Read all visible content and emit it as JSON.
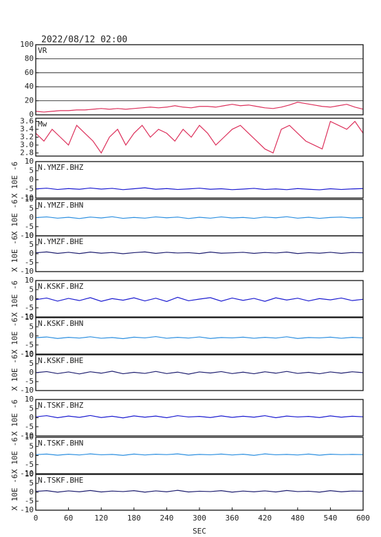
{
  "title": "2022/08/12 02:00",
  "chart_data": [
    {
      "type": "line",
      "title": "VR",
      "grid": true,
      "x": [
        0,
        15,
        30,
        45,
        60,
        75,
        90,
        105,
        120,
        135,
        150,
        165,
        180,
        195,
        210,
        225,
        240,
        255,
        270,
        285,
        300,
        315,
        330,
        345,
        360,
        375,
        390,
        405,
        420,
        435,
        450,
        465,
        480,
        495,
        510,
        525,
        540,
        555,
        570,
        585,
        600
      ],
      "series": [
        {
          "color": "#dc2f5a",
          "values": [
            5,
            4,
            5,
            6,
            6,
            7,
            7,
            8,
            9,
            8,
            9,
            8,
            9,
            10,
            11,
            10,
            11,
            13,
            11,
            10,
            12,
            12,
            11,
            13,
            15,
            13,
            14,
            12,
            10,
            9,
            11,
            14,
            18,
            16,
            14,
            12,
            11,
            13,
            15,
            11,
            8
          ]
        }
      ],
      "xlim": [
        0,
        600
      ],
      "ylim": [
        0,
        100
      ],
      "yticks": [
        0,
        20,
        40,
        60,
        80,
        100
      ]
    },
    {
      "type": "line",
      "title": "Mw",
      "x": [
        0,
        15,
        30,
        45,
        60,
        75,
        90,
        105,
        120,
        135,
        150,
        165,
        180,
        195,
        210,
        225,
        240,
        255,
        270,
        285,
        300,
        315,
        330,
        345,
        360,
        375,
        390,
        405,
        420,
        435,
        450,
        465,
        480,
        495,
        510,
        525,
        540,
        555,
        570,
        585,
        600
      ],
      "series": [
        {
          "color": "#dc2f5a",
          "values": [
            3.3,
            3.1,
            3.4,
            3.2,
            3.0,
            3.5,
            3.3,
            3.1,
            2.8,
            3.2,
            3.4,
            3.0,
            3.3,
            3.5,
            3.2,
            3.4,
            3.3,
            3.1,
            3.4,
            3.2,
            3.5,
            3.3,
            3.0,
            3.2,
            3.4,
            3.5,
            3.3,
            3.1,
            2.9,
            2.8,
            3.4,
            3.5,
            3.3,
            3.1,
            3.0,
            2.9,
            3.6,
            3.5,
            3.4,
            3.6,
            3.3
          ]
        }
      ],
      "xlim": [
        0,
        600
      ],
      "ylim": [
        2.72,
        3.68
      ],
      "yticks": [
        {
          "value": 2.8,
          "label": "2.8"
        },
        {
          "value": 3,
          "label": "3.0"
        },
        {
          "value": 3.2,
          "label": "3.2"
        },
        {
          "value": 3.4,
          "label": "3.4"
        },
        {
          "value": 3.6,
          "label": "3.6"
        }
      ]
    },
    {
      "type": "line",
      "title": "N.YMZF.BHZ",
      "ylabel": "X 10E -6",
      "x": [
        0,
        20,
        40,
        60,
        80,
        100,
        120,
        140,
        160,
        180,
        200,
        220,
        240,
        260,
        280,
        300,
        320,
        340,
        360,
        380,
        400,
        420,
        440,
        460,
        480,
        500,
        520,
        540,
        560,
        580,
        600
      ],
      "series": [
        {
          "color": "#1a1ad0",
          "values": [
            -5,
            -4.6,
            -5.3,
            -4.8,
            -5.2,
            -4.5,
            -5.1,
            -4.7,
            -5.4,
            -4.9,
            -4.4,
            -5.2,
            -4.8,
            -5.3,
            -5,
            -4.6,
            -5.2,
            -4.9,
            -5.4,
            -5.1,
            -4.7,
            -5.3,
            -5,
            -5.4,
            -4.8,
            -5.2,
            -5.5,
            -4.9,
            -5.3,
            -5,
            -4.8
          ]
        }
      ],
      "xlim": [
        0,
        600
      ],
      "ylim": [
        -10,
        10
      ],
      "yticks": [
        -10,
        -5,
        0,
        5,
        10
      ]
    },
    {
      "type": "line",
      "title": "N.YMZF.BHN",
      "ylabel": "X 10E -6",
      "x": [
        0,
        20,
        40,
        60,
        80,
        100,
        120,
        140,
        160,
        180,
        200,
        220,
        240,
        260,
        280,
        300,
        320,
        340,
        360,
        380,
        400,
        420,
        440,
        460,
        480,
        500,
        520,
        540,
        560,
        580,
        600
      ],
      "series": [
        {
          "color": "#2a8ee0",
          "values": [
            0,
            0.4,
            -0.3,
            0.2,
            -0.5,
            0.3,
            -0.2,
            0.5,
            -0.4,
            0.1,
            -0.3,
            0.4,
            -0.1,
            0.3,
            -0.5,
            0.2,
            -0.3,
            0.4,
            -0.2,
            0.1,
            -0.4,
            0.3,
            -0.1,
            0.5,
            -0.3,
            0.2,
            -0.4,
            0.1,
            0.3,
            -0.2,
            0
          ]
        }
      ],
      "xlim": [
        0,
        600
      ],
      "ylim": [
        -10,
        10
      ],
      "yticks": [
        -10,
        -5,
        0,
        5,
        10
      ]
    },
    {
      "type": "line",
      "title": "N.YMZF.BHE",
      "ylabel": "X 10E -6",
      "x": [
        0,
        20,
        40,
        60,
        80,
        100,
        120,
        140,
        160,
        180,
        200,
        220,
        240,
        260,
        280,
        300,
        320,
        340,
        360,
        380,
        400,
        420,
        440,
        460,
        480,
        500,
        520,
        540,
        560,
        580,
        600
      ],
      "series": [
        {
          "color": "#1c1c6e",
          "values": [
            0.5,
            1,
            0.2,
            0.8,
            0.1,
            0.9,
            0.3,
            0.7,
            0,
            0.6,
            1,
            0.2,
            0.8,
            0.4,
            0.6,
            0.1,
            0.9,
            0.3,
            0.5,
            0.8,
            0.2,
            0.7,
            0.4,
            0.9,
            0.1,
            0.6,
            0.3,
            0.8,
            0.2,
            0.7,
            0.5
          ]
        }
      ],
      "xlim": [
        0,
        600
      ],
      "ylim": [
        -10,
        10
      ],
      "yticks": [
        -10,
        -5,
        0,
        5,
        10
      ]
    },
    {
      "type": "line",
      "title": "N.KSKF.BHZ",
      "ylabel": "X 10E -6",
      "x": [
        0,
        20,
        40,
        60,
        80,
        100,
        120,
        140,
        160,
        180,
        200,
        220,
        240,
        260,
        280,
        300,
        320,
        340,
        360,
        380,
        400,
        420,
        440,
        460,
        480,
        500,
        520,
        540,
        560,
        580,
        600
      ],
      "series": [
        {
          "color": "#1a1ad0",
          "values": [
            -0.5,
            0.4,
            -1.3,
            0.2,
            -1,
            0.6,
            -1.4,
            0.1,
            -0.8,
            0.5,
            -1.2,
            0.3,
            -1.5,
            0.8,
            -1.1,
            -0.2,
            0.6,
            -1.3,
            0.4,
            -0.9,
            0.2,
            -1.4,
            0.5,
            -0.7,
            0.3,
            -1.2,
            0.1,
            -0.6,
            0.4,
            -1,
            -0.3
          ]
        }
      ],
      "xlim": [
        0,
        600
      ],
      "ylim": [
        -10,
        10
      ],
      "yticks": [
        -10,
        -5,
        0,
        5,
        10
      ]
    },
    {
      "type": "line",
      "title": "N.KSKF.BHN",
      "ylabel": "X 10E -6",
      "x": [
        0,
        20,
        40,
        60,
        80,
        100,
        120,
        140,
        160,
        180,
        200,
        220,
        240,
        260,
        280,
        300,
        320,
        340,
        360,
        380,
        400,
        420,
        440,
        460,
        480,
        500,
        520,
        540,
        560,
        580,
        600
      ],
      "series": [
        {
          "color": "#2a8ee0",
          "values": [
            -1,
            -0.6,
            -1.4,
            -0.8,
            -1.2,
            -0.5,
            -1.3,
            -0.9,
            -1.5,
            -0.7,
            -1.1,
            -0.4,
            -1.3,
            -0.8,
            -1.2,
            -0.6,
            -1.4,
            -0.9,
            -1.1,
            -0.7,
            -1.3,
            -0.8,
            -1.2,
            -0.5,
            -1.4,
            -0.9,
            -1.1,
            -0.7,
            -1.3,
            -0.8,
            -1.1
          ]
        }
      ],
      "xlim": [
        0,
        600
      ],
      "ylim": [
        -10,
        10
      ],
      "yticks": [
        -10,
        -5,
        0,
        5,
        10
      ]
    },
    {
      "type": "line",
      "title": "N.KSKF.BHE",
      "ylabel": "X 10E -6",
      "x": [
        0,
        20,
        40,
        60,
        80,
        100,
        120,
        140,
        160,
        180,
        200,
        220,
        240,
        260,
        280,
        300,
        320,
        340,
        360,
        380,
        400,
        420,
        440,
        460,
        480,
        500,
        520,
        540,
        560,
        580,
        600
      ],
      "series": [
        {
          "color": "#1c1c6e",
          "values": [
            0,
            0.6,
            -0.5,
            0.4,
            -0.7,
            0.5,
            -0.3,
            0.8,
            -0.6,
            0.2,
            -0.4,
            0.7,
            -0.5,
            0.3,
            -0.8,
            0.4,
            -0.2,
            0.6,
            -0.5,
            0.3,
            -0.6,
            0.5,
            -0.3,
            0.7,
            -0.4,
            0.2,
            -0.6,
            0.4,
            -0.3,
            0.5,
            0
          ]
        }
      ],
      "xlim": [
        0,
        600
      ],
      "ylim": [
        -10,
        10
      ],
      "yticks": [
        -10,
        -5,
        0,
        5,
        10
      ]
    },
    {
      "type": "line",
      "title": "N.TSKF.BHZ",
      "ylabel": "X 10E -6",
      "x": [
        0,
        20,
        40,
        60,
        80,
        100,
        120,
        140,
        160,
        180,
        200,
        220,
        240,
        260,
        280,
        300,
        320,
        340,
        360,
        380,
        400,
        420,
        440,
        460,
        480,
        500,
        520,
        540,
        560,
        580,
        600
      ],
      "series": [
        {
          "color": "#1a1ad0",
          "values": [
            0.5,
            1.1,
            0,
            0.9,
            0.2,
            1.2,
            0.1,
            0.8,
            -0.1,
            1,
            0.3,
            0.9,
            0,
            1.1,
            0.4,
            0.7,
            0.1,
            1,
            0.2,
            0.8,
            0.3,
            1.1,
            0,
            0.9,
            0.4,
            0.7,
            0.1,
            1,
            0.3,
            0.8,
            0.5
          ]
        }
      ],
      "xlim": [
        0,
        600
      ],
      "ylim": [
        -10,
        10
      ],
      "yticks": [
        -10,
        -5,
        0,
        5,
        10
      ]
    },
    {
      "type": "line",
      "title": "N.TSKF.BHN",
      "ylabel": "X 10E -6",
      "x": [
        0,
        20,
        40,
        60,
        80,
        100,
        120,
        140,
        160,
        180,
        200,
        220,
        240,
        260,
        280,
        300,
        320,
        340,
        360,
        380,
        400,
        420,
        440,
        460,
        480,
        500,
        520,
        540,
        560,
        580,
        600
      ],
      "series": [
        {
          "color": "#2a8ee0",
          "values": [
            0.5,
            0.8,
            0.2,
            0.7,
            0.3,
            0.9,
            0.4,
            0.6,
            0.1,
            0.8,
            0.3,
            0.7,
            0.5,
            0.9,
            0.2,
            0.6,
            0.4,
            0.8,
            0.3,
            0.7,
            0.1,
            0.9,
            0.4,
            0.6,
            0.3,
            0.8,
            0.2,
            0.7,
            0.5,
            0.6,
            0.5
          ]
        }
      ],
      "xlim": [
        0,
        600
      ],
      "ylim": [
        -10,
        10
      ],
      "yticks": [
        -10,
        -5,
        0,
        5,
        10
      ]
    },
    {
      "type": "line",
      "title": "N.TSKF.BHE",
      "ylabel": "X 10E -6",
      "xlabel": "SEC",
      "x": [
        0,
        20,
        40,
        60,
        80,
        100,
        120,
        140,
        160,
        180,
        200,
        220,
        240,
        260,
        280,
        300,
        320,
        340,
        360,
        380,
        400,
        420,
        440,
        460,
        480,
        500,
        520,
        540,
        560,
        580,
        600
      ],
      "series": [
        {
          "color": "#1c1c6e",
          "values": [
            0.5,
            0.9,
            0.1,
            0.8,
            0.3,
            1,
            0.2,
            0.7,
            0.4,
            0.9,
            0.1,
            0.8,
            0.3,
            1.1,
            0.2,
            0.6,
            0.4,
            0.9,
            0.1,
            0.7,
            0.3,
            0.8,
            0.2,
            1,
            0.4,
            0.6,
            0.1,
            0.9,
            0.3,
            0.7,
            0.6
          ]
        }
      ],
      "xlim": [
        0,
        600
      ],
      "ylim": [
        -10,
        10
      ],
      "yticks": [
        -10,
        -5,
        0,
        5,
        10
      ],
      "xticks": [
        0,
        60,
        120,
        180,
        240,
        300,
        360,
        420,
        480,
        540,
        600
      ]
    }
  ]
}
